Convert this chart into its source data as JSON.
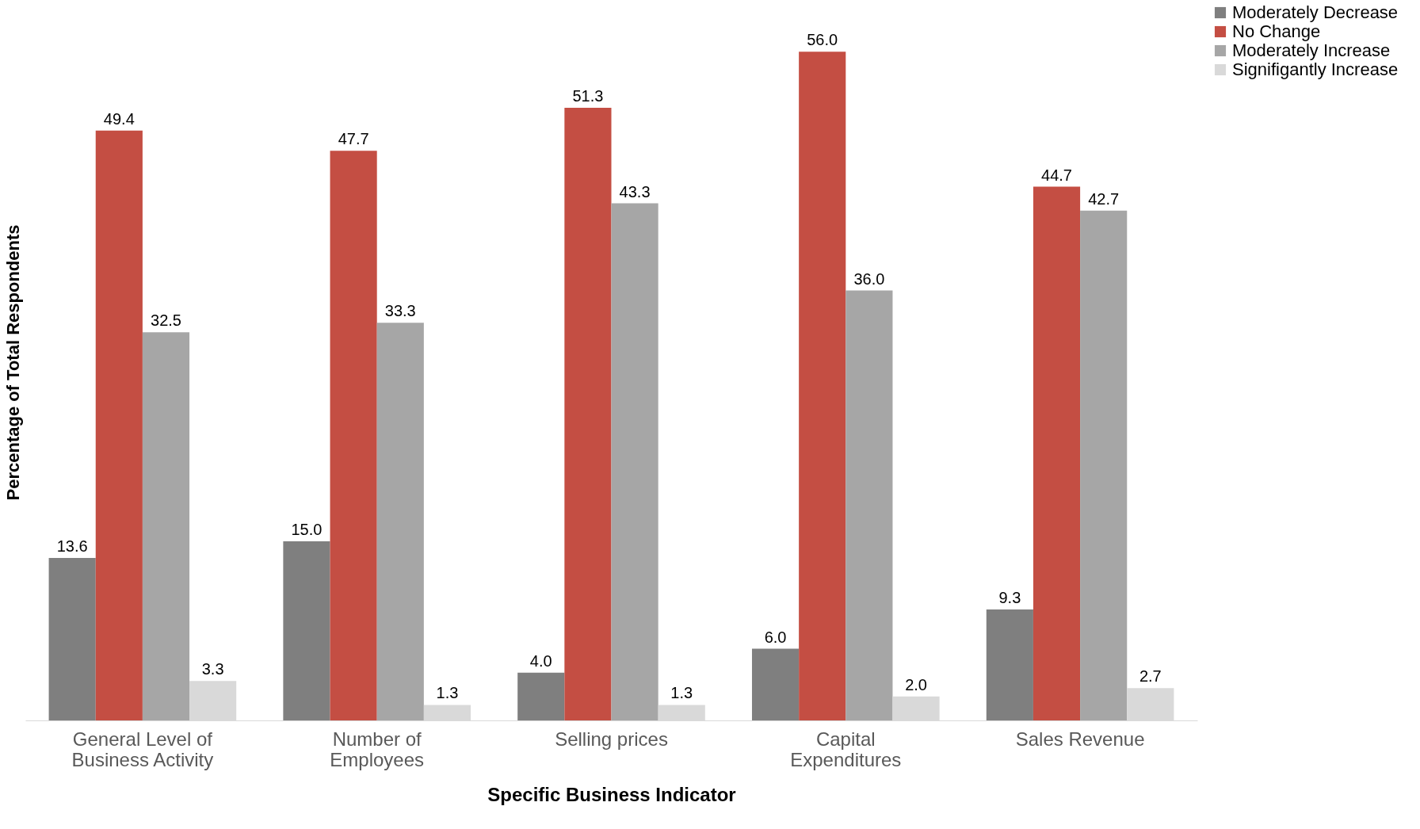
{
  "chart_data": {
    "type": "bar",
    "xlabel": "Specific Business Indicator",
    "ylabel": "Percentage of Total Respondents",
    "categories": [
      "General Level of Business Activity",
      "Number of Employees",
      "Selling prices",
      "Capital Expenditures",
      "Sales Revenue"
    ],
    "series": [
      {
        "name": "Moderately Decrease",
        "color": "#7f7f7f",
        "values": [
          13.6,
          15.0,
          4.0,
          6.0,
          9.3
        ],
        "value_labels": [
          "13.6",
          "15.0",
          "4.0",
          "6.0",
          "9.3"
        ]
      },
      {
        "name": "No Change",
        "color": "#c44e43",
        "values": [
          49.4,
          47.7,
          51.3,
          56.0,
          44.7
        ],
        "value_labels": [
          "49.4",
          "47.7",
          "51.3",
          "56.0",
          "44.7"
        ]
      },
      {
        "name": "Moderately Increase",
        "color": "#a6a6a6",
        "values": [
          32.5,
          33.3,
          43.3,
          36.0,
          42.7
        ],
        "value_labels": [
          "32.5",
          "33.3",
          "43.3",
          "36.0",
          "42.7"
        ]
      },
      {
        "name": "Signifigantly Increase",
        "color": "#d9d9d9",
        "values": [
          3.3,
          1.3,
          1.3,
          2.0,
          2.7
        ],
        "value_labels": [
          "3.3",
          "1.3",
          "1.3",
          "2.0",
          "2.7"
        ]
      }
    ],
    "legend": "right",
    "grid": false
  }
}
